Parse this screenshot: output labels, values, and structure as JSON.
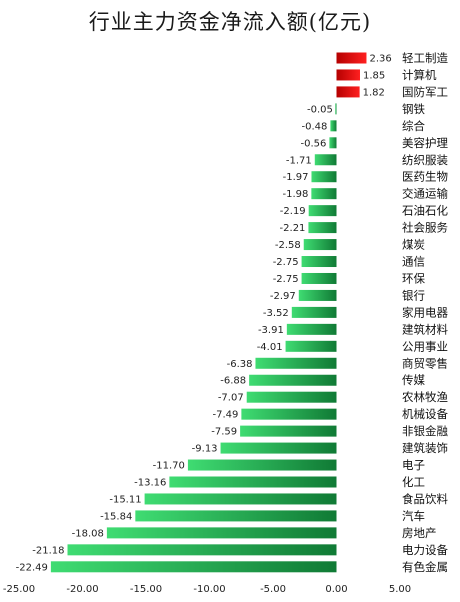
{
  "title": "行业主力资金净流入额(亿元)",
  "colors": {
    "positive_dark": "#b50000",
    "positive_light": "#ff2020",
    "negative_dark": "#107a35",
    "negative_light": "#3fdc72"
  },
  "chart_data": {
    "type": "bar",
    "orientation": "horizontal",
    "title": "行业主力资金净流入额(亿元)",
    "categories": [
      "轻工制造",
      "计算机",
      "国防军工",
      "钢铁",
      "综合",
      "美容护理",
      "纺织服装",
      "医药生物",
      "交通运输",
      "石油石化",
      "社会服务",
      "煤炭",
      "通信",
      "环保",
      "银行",
      "家用电器",
      "建筑材料",
      "公用事业",
      "商贸零售",
      "传媒",
      "农林牧渔",
      "机械设备",
      "非银金融",
      "建筑装饰",
      "电子",
      "化工",
      "食品饮料",
      "汽车",
      "房地产",
      "电力设备",
      "有色金属"
    ],
    "values": [
      2.36,
      1.85,
      1.82,
      -0.05,
      -0.48,
      -0.56,
      -1.71,
      -1.97,
      -1.98,
      -2.19,
      -2.21,
      -2.58,
      -2.75,
      -2.75,
      -2.97,
      -3.52,
      -3.91,
      -4.01,
      -6.38,
      -6.88,
      -7.07,
      -7.49,
      -7.59,
      -9.13,
      -11.7,
      -13.16,
      -15.11,
      -15.84,
      -18.08,
      -21.18,
      -22.49
    ],
    "value_labels": [
      "2.36",
      "1.85",
      "1.82",
      "-0.05",
      "-0.48",
      "-0.56",
      "-1.71",
      "-1.97",
      "-1.98",
      "-2.19",
      "-2.21",
      "-2.58",
      "-2.75",
      "-2.75",
      "-2.97",
      "-3.52",
      "-3.91",
      "-4.01",
      "-6.38",
      "-6.88",
      "-7.07",
      "-7.49",
      "-7.59",
      "-9.13",
      "-11.70",
      "-13.16",
      "-15.11",
      "-15.84",
      "-18.08",
      "-21.18",
      "-22.49"
    ],
    "xlim": [
      -25,
      5
    ],
    "xticks": [
      -25,
      -20,
      -15,
      -10,
      -5,
      0,
      5
    ],
    "xtick_labels": [
      "-25.00",
      "-20.00",
      "-15.00",
      "-10.00",
      "-5.00",
      "0.00",
      "5.00"
    ],
    "grid": false,
    "legend": "none"
  }
}
